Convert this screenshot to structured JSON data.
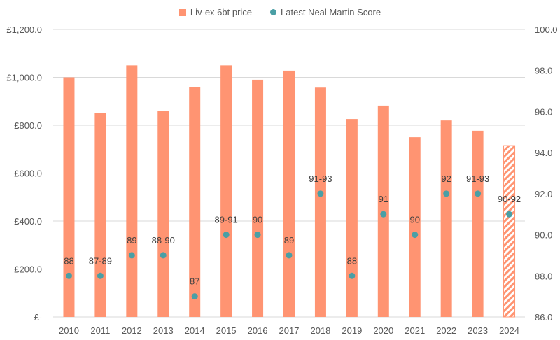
{
  "chart_data": {
    "type": "bar",
    "categories": [
      "2010",
      "2011",
      "2012",
      "2013",
      "2014",
      "2015",
      "2016",
      "2017",
      "2018",
      "2019",
      "2020",
      "2021",
      "2022",
      "2023",
      "2024"
    ],
    "series": [
      {
        "name": "Liv-ex 6bt price",
        "axis": "left",
        "type": "bar",
        "values": [
          1000,
          850,
          1050,
          860,
          960,
          1050,
          990,
          1028,
          957,
          826,
          882,
          750,
          820,
          777,
          715
        ],
        "estimated_last": true
      },
      {
        "name": "Latest Neal Martin Score",
        "axis": "right",
        "type": "scatter",
        "values": [
          88,
          88,
          89,
          89,
          87,
          90,
          90,
          89,
          92,
          88,
          91,
          90,
          92,
          92,
          91
        ],
        "labels": [
          "88",
          "87-89",
          "89",
          "88-90",
          "87",
          "89-91",
          "90",
          "89",
          "91-93",
          "88",
          "91",
          "90",
          "92",
          "91-93",
          "90-92"
        ]
      }
    ],
    "y_left": {
      "ylim": [
        0,
        1200
      ],
      "ticks": [
        0,
        200,
        400,
        600,
        800,
        1000,
        1200
      ],
      "tick_labels": [
        "£-",
        "£200.0",
        "£400.0",
        "£600.0",
        "£800.0",
        "£1,000.0",
        "£1,200.0"
      ]
    },
    "y_right": {
      "ylim": [
        86,
        100
      ],
      "ticks": [
        86,
        88,
        90,
        92,
        94,
        96,
        98,
        100
      ],
      "tick_labels": [
        "86.0",
        "88.0",
        "90.0",
        "92.0",
        "94.0",
        "96.0",
        "98.0",
        "100.0"
      ]
    },
    "grid": true,
    "legend_position": "top-center",
    "colors": {
      "bar": "#FF9472",
      "dot": "#4A9FA5",
      "grid": "#D9D9D9",
      "text": "#595959",
      "label": "#404040"
    }
  }
}
